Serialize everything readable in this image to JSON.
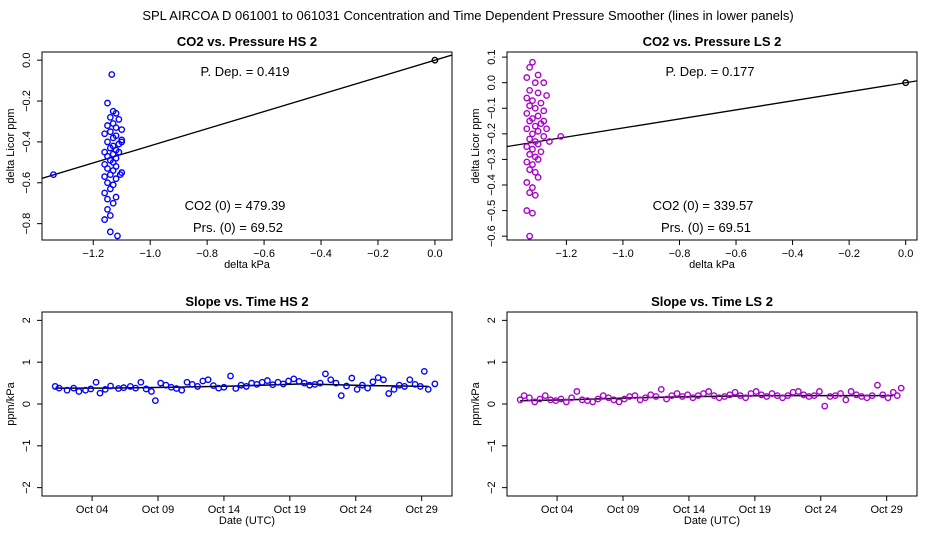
{
  "figure": {
    "main_title": "SPL   AIRCOA D   061001 to 061031   Concentration and Time Dependent Pressure Smoother (lines in lower panels)"
  },
  "chart_data": [
    {
      "id": "hs-pressure",
      "type": "scatter",
      "title": "CO2 vs. Pressure HS 2",
      "xlabel": "delta kPa",
      "ylabel": "delta Licor ppm",
      "xlim": [
        -1.38,
        0.06
      ],
      "ylim": [
        -0.88,
        0.04
      ],
      "xticks": [
        -1.2,
        -1.0,
        -0.8,
        -0.6,
        -0.4,
        -0.2,
        0.0
      ],
      "xtick_labels": [
        "−1.2",
        "−1.0",
        "−0.8",
        "−0.6",
        "−0.4",
        "−0.2",
        "0.0"
      ],
      "yticks": [
        0.0,
        -0.2,
        -0.4,
        -0.6,
        -0.8
      ],
      "ytick_labels": [
        "0.0",
        "−0.2",
        "−0.4",
        "−0.6",
        "−0.8"
      ],
      "color": "#0000ff",
      "annotations": {
        "p_dep": "P. Dep. =  0.419",
        "co2_0": "CO2 (0) =  479.39",
        "prs_0": "Prs. (0) =  69.52"
      },
      "fit_line": {
        "slope": 0.419,
        "intercept": 0.0
      },
      "origin_point": [
        0.0,
        0.0
      ],
      "points": [
        [
          -1.34,
          -0.56
        ],
        [
          -1.135,
          -0.07
        ],
        [
          -1.15,
          -0.21
        ],
        [
          -1.13,
          -0.25
        ],
        [
          -1.12,
          -0.26
        ],
        [
          -1.14,
          -0.28
        ],
        [
          -1.11,
          -0.29
        ],
        [
          -1.13,
          -0.31
        ],
        [
          -1.15,
          -0.32
        ],
        [
          -1.12,
          -0.33
        ],
        [
          -1.1,
          -0.34
        ],
        [
          -1.14,
          -0.35
        ],
        [
          -1.16,
          -0.36
        ],
        [
          -1.12,
          -0.37
        ],
        [
          -1.13,
          -0.38
        ],
        [
          -1.1,
          -0.39
        ],
        [
          -1.15,
          -0.4
        ],
        [
          -1.11,
          -0.41
        ],
        [
          -1.13,
          -0.42
        ],
        [
          -1.14,
          -0.43
        ],
        [
          -1.12,
          -0.44
        ],
        [
          -1.16,
          -0.45
        ],
        [
          -1.11,
          -0.45
        ],
        [
          -1.13,
          -0.46
        ],
        [
          -1.15,
          -0.47
        ],
        [
          -1.12,
          -0.48
        ],
        [
          -1.14,
          -0.49
        ],
        [
          -1.13,
          -0.5
        ],
        [
          -1.16,
          -0.51
        ],
        [
          -1.12,
          -0.52
        ],
        [
          -1.15,
          -0.53
        ],
        [
          -1.13,
          -0.54
        ],
        [
          -1.1,
          -0.55
        ],
        [
          -1.14,
          -0.56
        ],
        [
          -1.16,
          -0.57
        ],
        [
          -1.12,
          -0.58
        ],
        [
          -1.15,
          -0.6
        ],
        [
          -1.13,
          -0.61
        ],
        [
          -1.14,
          -0.63
        ],
        [
          -1.16,
          -0.65
        ],
        [
          -1.12,
          -0.67
        ],
        [
          -1.15,
          -0.68
        ],
        [
          -1.13,
          -0.7
        ],
        [
          -1.15,
          -0.73
        ],
        [
          -1.14,
          -0.76
        ],
        [
          -1.16,
          -0.78
        ],
        [
          -1.14,
          -0.84
        ],
        [
          -1.115,
          -0.86
        ],
        [
          -1.105,
          -0.56
        ],
        [
          -1.1,
          -0.4
        ]
      ]
    },
    {
      "id": "ls-pressure",
      "type": "scatter",
      "title": "CO2 vs. Pressure LS 2",
      "xlabel": "delta kPa",
      "ylabel": "delta Licor ppm",
      "xlim": [
        -1.41,
        0.04
      ],
      "ylim": [
        -0.615,
        0.12
      ],
      "xticks": [
        -1.2,
        -1.0,
        -0.8,
        -0.6,
        -0.4,
        -0.2,
        0.0
      ],
      "xtick_labels": [
        "−1.2",
        "−1.0",
        "−0.8",
        "−0.6",
        "−0.4",
        "−0.2",
        "0.0"
      ],
      "yticks": [
        0.1,
        0.0,
        -0.1,
        -0.2,
        -0.3,
        -0.4,
        -0.5,
        -0.6
      ],
      "ytick_labels": [
        "0.1",
        "0.0",
        "−0.1",
        "−0.2",
        "−0.3",
        "−0.4",
        "−0.5",
        "−0.6"
      ],
      "color": "#aa00cc",
      "annotations": {
        "p_dep": "P. Dep. =  0.177",
        "co2_0": "CO2 (0) =  339.57",
        "prs_0": "Prs. (0) =  69.51"
      },
      "fit_line": {
        "slope": 0.177,
        "intercept": 0.0
      },
      "origin_point": [
        0.0,
        0.0
      ],
      "points": [
        [
          -1.32,
          0.08
        ],
        [
          -1.33,
          0.06
        ],
        [
          -1.3,
          0.03
        ],
        [
          -1.34,
          0.02
        ],
        [
          -1.31,
          0.0
        ],
        [
          -1.28,
          0.0
        ],
        [
          -1.33,
          -0.03
        ],
        [
          -1.3,
          -0.04
        ],
        [
          -1.27,
          -0.05
        ],
        [
          -1.34,
          -0.06
        ],
        [
          -1.32,
          -0.07
        ],
        [
          -1.29,
          -0.08
        ],
        [
          -1.33,
          -0.09
        ],
        [
          -1.31,
          -0.1
        ],
        [
          -1.28,
          -0.11
        ],
        [
          -1.34,
          -0.12
        ],
        [
          -1.3,
          -0.13
        ],
        [
          -1.32,
          -0.14
        ],
        [
          -1.33,
          -0.15
        ],
        [
          -1.29,
          -0.16
        ],
        [
          -1.31,
          -0.17
        ],
        [
          -1.34,
          -0.18
        ],
        [
          -1.3,
          -0.19
        ],
        [
          -1.32,
          -0.2
        ],
        [
          -1.28,
          -0.21
        ],
        [
          -1.33,
          -0.22
        ],
        [
          -1.31,
          -0.23
        ],
        [
          -1.3,
          -0.24
        ],
        [
          -1.34,
          -0.25
        ],
        [
          -1.32,
          -0.26
        ],
        [
          -1.29,
          -0.27
        ],
        [
          -1.33,
          -0.28
        ],
        [
          -1.31,
          -0.29
        ],
        [
          -1.3,
          -0.3
        ],
        [
          -1.34,
          -0.31
        ],
        [
          -1.32,
          -0.32
        ],
        [
          -1.33,
          -0.34
        ],
        [
          -1.31,
          -0.35
        ],
        [
          -1.3,
          -0.37
        ],
        [
          -1.34,
          -0.39
        ],
        [
          -1.32,
          -0.41
        ],
        [
          -1.33,
          -0.43
        ],
        [
          -1.31,
          -0.44
        ],
        [
          -1.34,
          -0.5
        ],
        [
          -1.32,
          -0.51
        ],
        [
          -1.33,
          -0.6
        ],
        [
          -1.22,
          -0.21
        ],
        [
          -1.26,
          -0.23
        ],
        [
          -1.27,
          -0.18
        ],
        [
          -1.28,
          -0.15
        ]
      ]
    },
    {
      "id": "hs-slope",
      "type": "scatter",
      "title": "Slope vs. Time HS 2",
      "xlabel": "Date (UTC)",
      "ylabel": "ppm/kPa",
      "xlim": [
        0.2,
        31.3
      ],
      "ylim": [
        -2.2,
        2.2
      ],
      "xticks": [
        4,
        9,
        14,
        19,
        24,
        29
      ],
      "xtick_labels": [
        "Oct 04",
        "Oct 09",
        "Oct 14",
        "Oct 19",
        "Oct 24",
        "Oct 29"
      ],
      "yticks": [
        -2,
        -1,
        0,
        1,
        2
      ],
      "ytick_labels": [
        "−2",
        "−1",
        "0",
        "1",
        "2"
      ],
      "color": "#0000ff",
      "smoother": [
        [
          1.2,
          0.38
        ],
        [
          5,
          0.38
        ],
        [
          10,
          0.4
        ],
        [
          15,
          0.43
        ],
        [
          20,
          0.48
        ],
        [
          25,
          0.44
        ],
        [
          29.5,
          0.42
        ]
      ],
      "points": [
        [
          1.2,
          0.42
        ],
        [
          1.5,
          0.38
        ],
        [
          2.1,
          0.33
        ],
        [
          2.6,
          0.38
        ],
        [
          3,
          0.3
        ],
        [
          3.5,
          0.33
        ],
        [
          3.9,
          0.36
        ],
        [
          4.3,
          0.52
        ],
        [
          4.6,
          0.26
        ],
        [
          5,
          0.35
        ],
        [
          5.4,
          0.43
        ],
        [
          6,
          0.37
        ],
        [
          6.4,
          0.39
        ],
        [
          6.9,
          0.42
        ],
        [
          7.3,
          0.38
        ],
        [
          7.7,
          0.52
        ],
        [
          8.1,
          0.36
        ],
        [
          8.5,
          0.3
        ],
        [
          8.8,
          0.08
        ],
        [
          9.2,
          0.5
        ],
        [
          9.6,
          0.45
        ],
        [
          10,
          0.4
        ],
        [
          10.4,
          0.37
        ],
        [
          10.8,
          0.33
        ],
        [
          11.2,
          0.52
        ],
        [
          11.6,
          0.47
        ],
        [
          12,
          0.42
        ],
        [
          12.4,
          0.55
        ],
        [
          12.8,
          0.58
        ],
        [
          13.2,
          0.44
        ],
        [
          13.6,
          0.38
        ],
        [
          14,
          0.4
        ],
        [
          14.5,
          0.67
        ],
        [
          14.9,
          0.37
        ],
        [
          15.3,
          0.45
        ],
        [
          15.7,
          0.42
        ],
        [
          16.1,
          0.5
        ],
        [
          16.5,
          0.47
        ],
        [
          16.9,
          0.52
        ],
        [
          17.3,
          0.56
        ],
        [
          17.7,
          0.46
        ],
        [
          18.1,
          0.52
        ],
        [
          18.5,
          0.48
        ],
        [
          18.9,
          0.55
        ],
        [
          19.3,
          0.6
        ],
        [
          19.7,
          0.54
        ],
        [
          20.1,
          0.5
        ],
        [
          20.5,
          0.45
        ],
        [
          20.9,
          0.47
        ],
        [
          21.3,
          0.5
        ],
        [
          21.7,
          0.72
        ],
        [
          22.1,
          0.58
        ],
        [
          22.5,
          0.5
        ],
        [
          22.9,
          0.2
        ],
        [
          23.3,
          0.43
        ],
        [
          23.7,
          0.62
        ],
        [
          24.1,
          0.35
        ],
        [
          24.5,
          0.45
        ],
        [
          24.9,
          0.38
        ],
        [
          25.3,
          0.53
        ],
        [
          25.7,
          0.63
        ],
        [
          26.1,
          0.58
        ],
        [
          26.5,
          0.25
        ],
        [
          26.9,
          0.35
        ],
        [
          27.3,
          0.45
        ],
        [
          27.7,
          0.42
        ],
        [
          28.1,
          0.58
        ],
        [
          28.5,
          0.47
        ],
        [
          28.9,
          0.42
        ],
        [
          29.2,
          0.78
        ],
        [
          29.5,
          0.35
        ],
        [
          30,
          0.48
        ]
      ]
    },
    {
      "id": "ls-slope",
      "type": "scatter",
      "title": "Slope vs. Time LS 2",
      "xlabel": "Date (UTC)",
      "ylabel": "ppm/kPa",
      "xlim": [
        0.2,
        31.3
      ],
      "ylim": [
        -2.2,
        2.2
      ],
      "xticks": [
        4,
        9,
        14,
        19,
        24,
        29
      ],
      "xtick_labels": [
        "Oct 04",
        "Oct 09",
        "Oct 14",
        "Oct 19",
        "Oct 24",
        "Oct 29"
      ],
      "yticks": [
        -2,
        -1,
        0,
        1,
        2
      ],
      "ytick_labels": [
        "−2",
        "−1",
        "0",
        "1",
        "2"
      ],
      "color": "#aa00cc",
      "smoother": [
        [
          1.2,
          0.08
        ],
        [
          5,
          0.1
        ],
        [
          10,
          0.15
        ],
        [
          15,
          0.18
        ],
        [
          20,
          0.2
        ],
        [
          25,
          0.2
        ],
        [
          29.5,
          0.2
        ]
      ],
      "points": [
        [
          1.2,
          0.1
        ],
        [
          1.5,
          0.2
        ],
        [
          1.9,
          0.15
        ],
        [
          2.3,
          0.05
        ],
        [
          2.7,
          0.12
        ],
        [
          3.1,
          0.2
        ],
        [
          3.5,
          0.1
        ],
        [
          3.9,
          0.08
        ],
        [
          4.3,
          0.12
        ],
        [
          4.7,
          0.05
        ],
        [
          5.1,
          0.15
        ],
        [
          5.5,
          0.3
        ],
        [
          5.9,
          0.1
        ],
        [
          6.3,
          0.08
        ],
        [
          6.7,
          0.05
        ],
        [
          7.1,
          0.12
        ],
        [
          7.5,
          0.2
        ],
        [
          7.9,
          0.15
        ],
        [
          8.3,
          0.1
        ],
        [
          8.7,
          0.05
        ],
        [
          9.1,
          0.12
        ],
        [
          9.5,
          0.18
        ],
        [
          9.9,
          0.2
        ],
        [
          10.3,
          0.1
        ],
        [
          10.7,
          0.15
        ],
        [
          11.1,
          0.22
        ],
        [
          11.5,
          0.18
        ],
        [
          11.9,
          0.35
        ],
        [
          12.3,
          0.12
        ],
        [
          12.7,
          0.2
        ],
        [
          13.1,
          0.25
        ],
        [
          13.5,
          0.18
        ],
        [
          13.9,
          0.22
        ],
        [
          14.3,
          0.15
        ],
        [
          14.7,
          0.2
        ],
        [
          15.1,
          0.25
        ],
        [
          15.5,
          0.3
        ],
        [
          15.9,
          0.2
        ],
        [
          16.3,
          0.15
        ],
        [
          16.7,
          0.18
        ],
        [
          17.1,
          0.22
        ],
        [
          17.5,
          0.28
        ],
        [
          17.9,
          0.2
        ],
        [
          18.3,
          0.15
        ],
        [
          18.7,
          0.25
        ],
        [
          19.1,
          0.3
        ],
        [
          19.5,
          0.22
        ],
        [
          19.9,
          0.18
        ],
        [
          20.3,
          0.25
        ],
        [
          20.7,
          0.2
        ],
        [
          21.1,
          0.15
        ],
        [
          21.5,
          0.2
        ],
        [
          21.9,
          0.28
        ],
        [
          22.3,
          0.3
        ],
        [
          22.7,
          0.22
        ],
        [
          23.1,
          0.18
        ],
        [
          23.5,
          0.2
        ],
        [
          23.9,
          0.3
        ],
        [
          24.3,
          -0.05
        ],
        [
          24.7,
          0.18
        ],
        [
          25.1,
          0.2
        ],
        [
          25.5,
          0.25
        ],
        [
          25.9,
          0.1
        ],
        [
          26.3,
          0.3
        ],
        [
          26.7,
          0.22
        ],
        [
          27.1,
          0.18
        ],
        [
          27.5,
          0.15
        ],
        [
          27.9,
          0.2
        ],
        [
          28.3,
          0.45
        ],
        [
          28.7,
          0.22
        ],
        [
          29.1,
          0.15
        ],
        [
          29.5,
          0.28
        ],
        [
          29.8,
          0.2
        ],
        [
          30.1,
          0.38
        ]
      ]
    }
  ]
}
